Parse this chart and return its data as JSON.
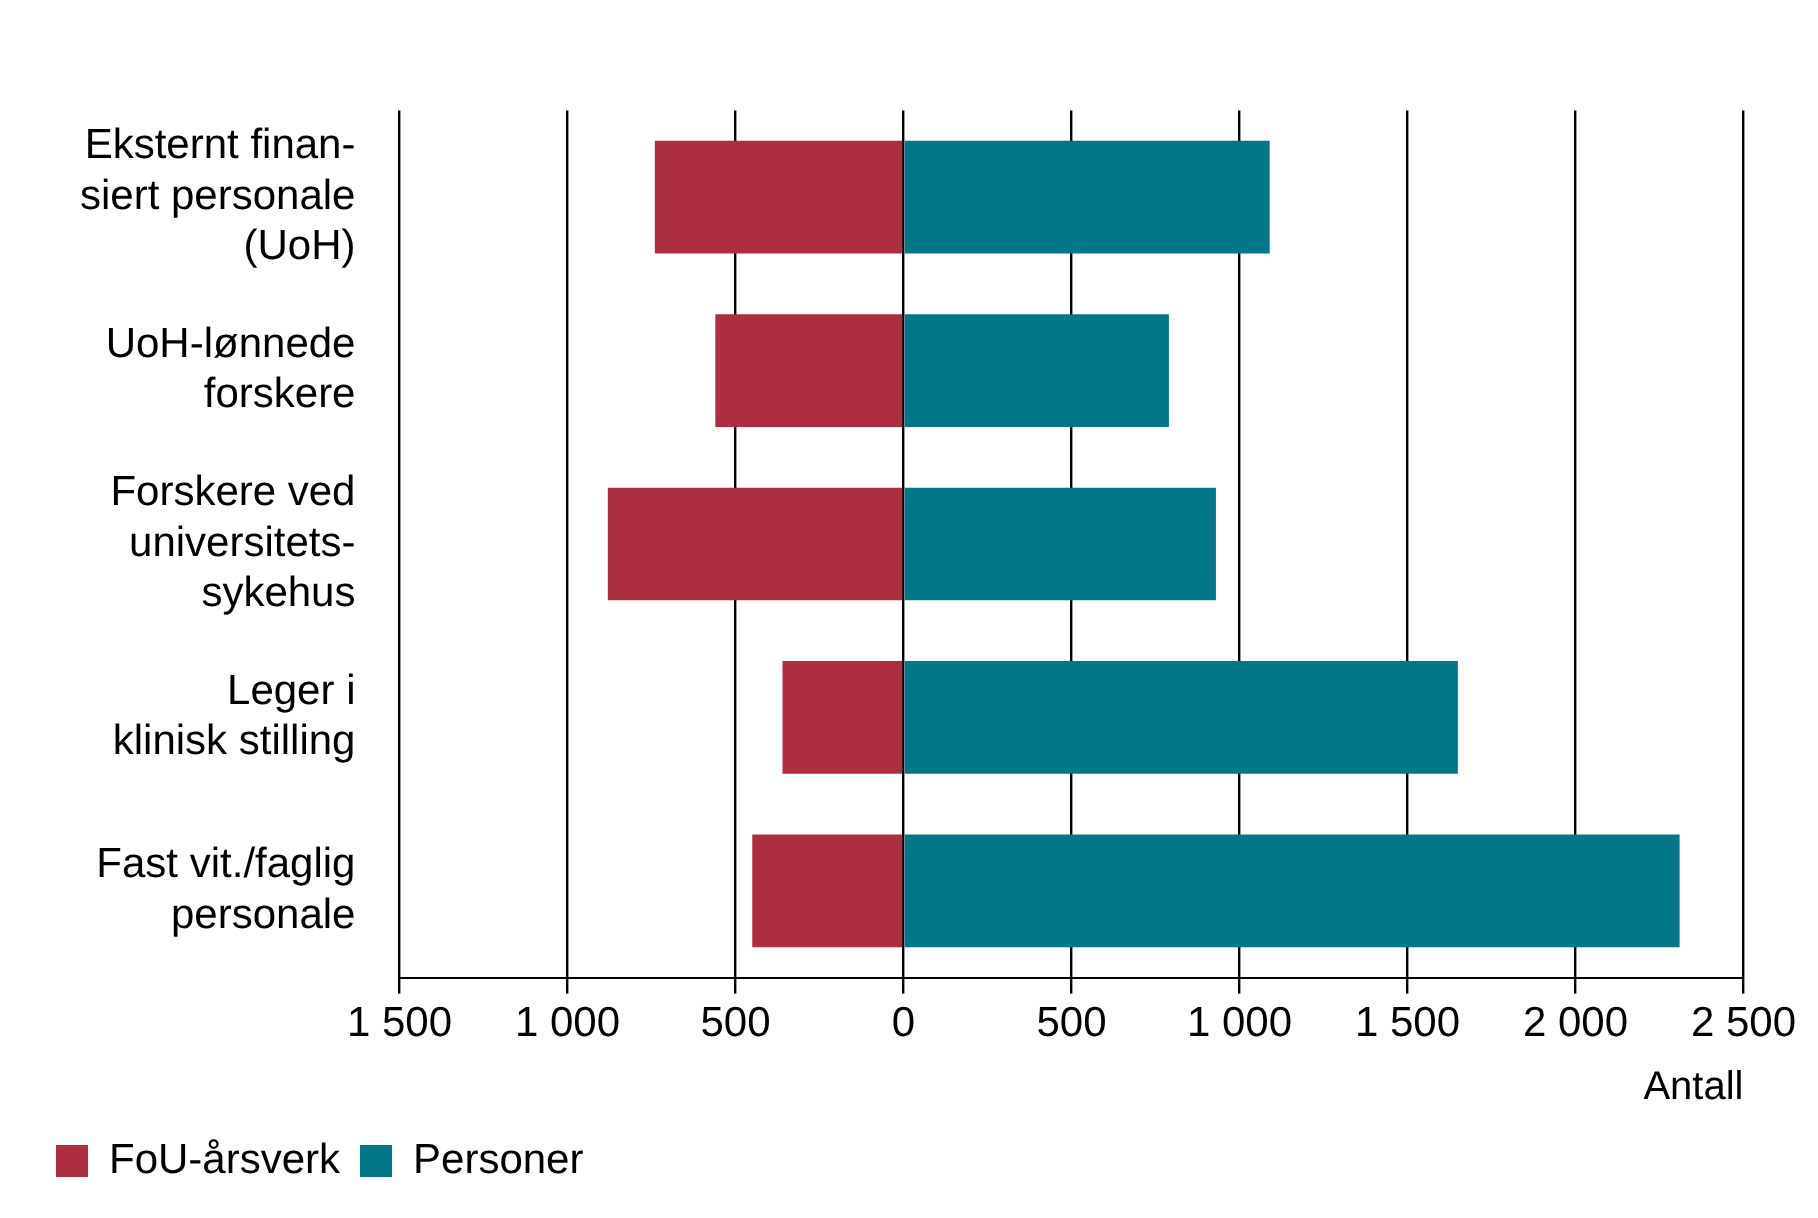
{
  "chart_data": {
    "type": "bar",
    "orientation": "horizontal",
    "stacked": true,
    "categories": [
      "Eksternt finan-\nsiert personale\n(UoH)",
      "UoH-lønnede\nforskere",
      "Forskere ved\nuniversitets-\nsykehus",
      "Leger i\nklinisk stilling",
      "Fast vit./faglig\npersonale"
    ],
    "series": [
      {
        "name": "FoU-årsverk",
        "color": "#ad2e40",
        "values": [
          -740,
          -560,
          -880,
          -360,
          -450
        ]
      },
      {
        "name": "Personer",
        "color": "#037787",
        "values": [
          1090,
          790,
          930,
          1650,
          2310
        ]
      }
    ],
    "xlabel": "Antall",
    "xlim": [
      -1500,
      2500
    ],
    "xticks": [
      {
        "value": -1500,
        "label": "1 500"
      },
      {
        "value": -1000,
        "label": "1 000"
      },
      {
        "value": -500,
        "label": "500"
      },
      0,
      500,
      {
        "value": 1000,
        "label": "1 000"
      },
      {
        "value": 1500,
        "label": "1 500"
      },
      {
        "value": 2000,
        "label": "2 000"
      },
      {
        "value": 2500,
        "label": "2 500"
      }
    ],
    "grid": "x",
    "legend": "bottom left"
  }
}
